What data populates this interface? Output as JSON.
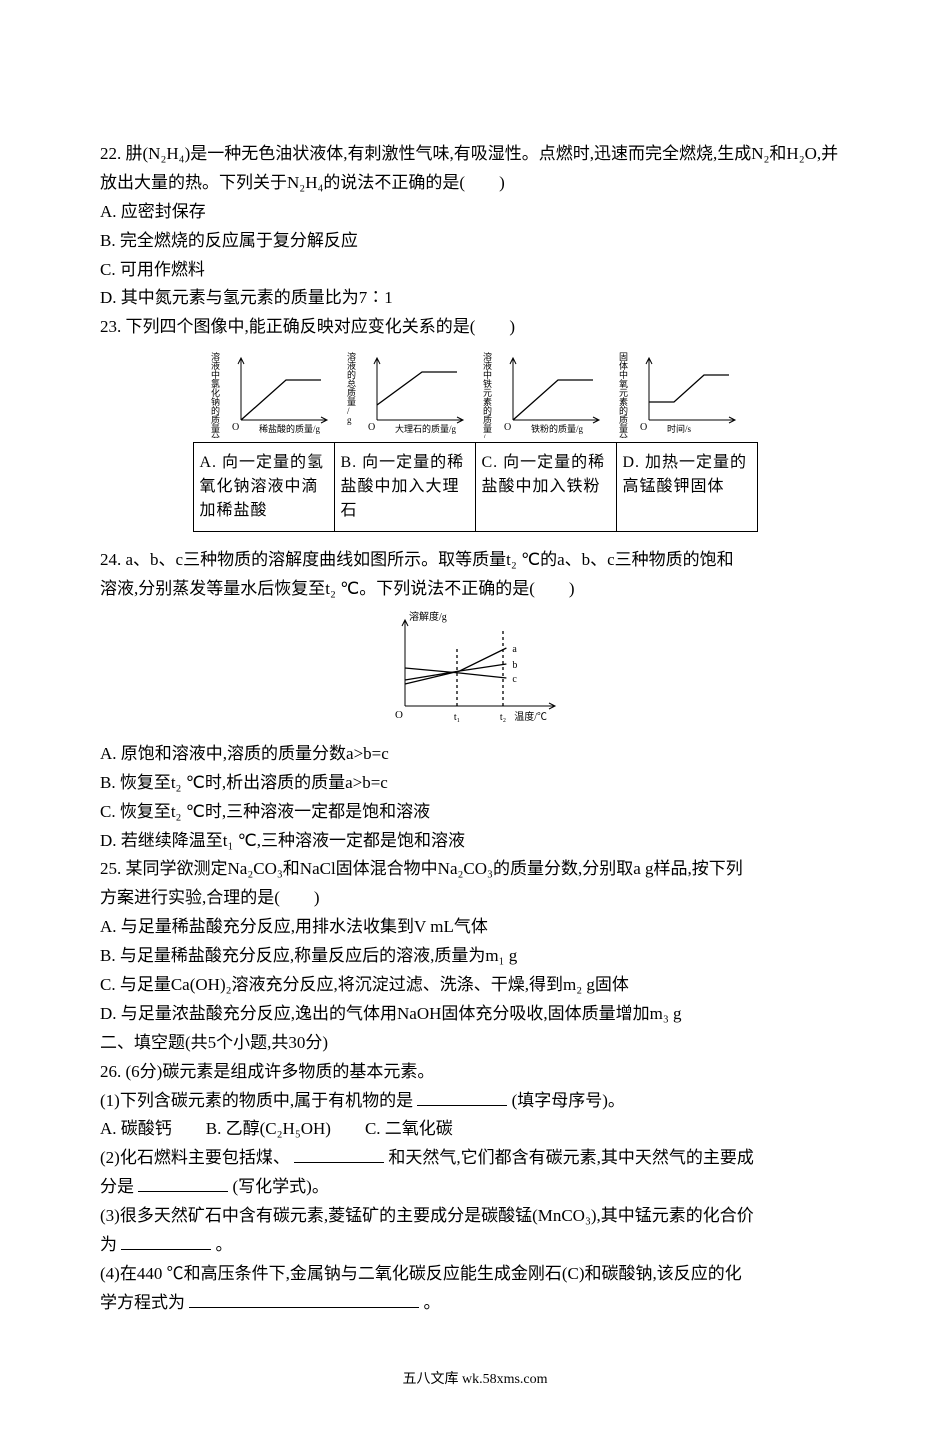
{
  "footer": "五八文库 wk.58xms.com",
  "q22": {
    "stem": "22. 肼(N₂H₄)是一种无色油状液体,有刺激性气味,有吸湿性。点燃时,迅速而完全燃烧,生成N₂和H₂O,并放出大量的热。下列关于N₂H₄的说法不正确的是(　　)",
    "A": "A. 应密封保存",
    "B": "B. 完全燃烧的反应属于复分解反应",
    "C": "C. 可用作燃料",
    "D": "D. 其中氮元素与氢元素的质量比为7∶1"
  },
  "q23": {
    "stem": "23. 下列四个图像中,能正确反映对应变化关系的是(　　)",
    "charts": [
      {
        "ylabel": "溶液中氯化钠的质量分数/%",
        "xlabel": "稀盐酸的质量/g",
        "curve": {
          "type": "rise-plateau",
          "color": "#000000"
        },
        "axis_color": "#000000",
        "font_size": 9
      },
      {
        "ylabel": "溶液的总质量/g",
        "xlabel": "大理石的质量/g",
        "curve": {
          "type": "rise-plateau-offset",
          "color": "#000000"
        },
        "axis_color": "#000000",
        "font_size": 9
      },
      {
        "ylabel": "溶液中铁元素的质量/g",
        "xlabel": "铁粉的质量/g",
        "curve": {
          "type": "rise-plateau",
          "color": "#000000"
        },
        "axis_color": "#000000",
        "font_size": 9
      },
      {
        "ylabel": "固体中氧元素的质量分数/%",
        "xlabel": "时间/s",
        "curve": {
          "type": "flat-rise-plateau",
          "color": "#000000"
        },
        "axis_color": "#000000",
        "font_size": 9
      }
    ],
    "options": {
      "A": "A. 向一定量的氢氧化钠溶液中滴加稀盐酸",
      "B": "B. 向一定量的稀盐酸中加入大理石",
      "C": "C. 向一定量的稀盐酸中加入铁粉",
      "D": "D. 加热一定量的高锰酸钾固体"
    }
  },
  "q24": {
    "stem1": "24. a、b、c三种物质的溶解度曲线如图所示。取等质量t₂ ℃的a、b、c三种物质的饱和",
    "stem2": "溶液,分别蒸发等量水后恢复至t₂ ℃。下列说法不正确的是(　　)",
    "chart": {
      "ylabel": "溶解度/g",
      "xlabel": "温度/℃",
      "xticks": [
        "t₁",
        "t₂"
      ],
      "curves": [
        {
          "name": "a",
          "color": "#000000",
          "points": [
            [
              0,
              26
            ],
            [
              42,
              35
            ],
            [
              78,
              58
            ]
          ]
        },
        {
          "name": "b",
          "color": "#000000",
          "points": [
            [
              0,
              22
            ],
            [
              42,
              35
            ],
            [
              78,
              42
            ]
          ]
        },
        {
          "name": "c",
          "color": "#000000",
          "points": [
            [
              0,
              38
            ],
            [
              42,
              33
            ],
            [
              78,
              28
            ]
          ]
        }
      ],
      "axis_color": "#000000",
      "font_size": 10
    },
    "A": "A. 原饱和溶液中,溶质的质量分数a>b=c",
    "B": "B. 恢复至t₂ ℃时,析出溶质的质量a>b=c",
    "C": "C. 恢复至t₂ ℃时,三种溶液一定都是饱和溶液",
    "D": "D. 若继续降温至t₁ ℃,三种溶液一定都是饱和溶液"
  },
  "q25": {
    "stem1": "25. 某同学欲测定Na₂CO₃和NaCl固体混合物中Na₂CO₃的质量分数,分别取a g样品,按下列",
    "stem2": "方案进行实验,合理的是(　　)",
    "A": "A. 与足量稀盐酸充分反应,用排水法收集到V mL气体",
    "B": "B. 与足量稀盐酸充分反应,称量反应后的溶液,质量为m₁ g",
    "C": "C. 与足量Ca(OH)₂溶液充分反应,将沉淀过滤、洗涤、干燥,得到m₂ g固体",
    "D": "D. 与足量浓盐酸充分反应,逸出的气体用NaOH固体充分吸收,固体质量增加m₃ g"
  },
  "section2": "二、填空题(共5个小题,共30分)",
  "q26": {
    "head": "26. (6分)碳元素是组成许多物质的基本元素。",
    "p1a": "(1)下列含碳元素的物质中,属于有机物的是",
    "p1b": "(填字母序号)。",
    "p1opts": "A. 碳酸钙　　B. 乙醇(C₂H₅OH)　　C. 二氧化碳",
    "p2a": "(2)化石燃料主要包括煤、",
    "p2b": "和天然气,它们都含有碳元素,其中天然气的主要成",
    "p2c": "分是",
    "p2d": "(写化学式)。",
    "p3a": "(3)很多天然矿石中含有碳元素,菱锰矿的主要成分是碳酸锰(MnCO₃),其中锰元素的化合价",
    "p3b": "为",
    "p3c": "。",
    "p4a": "(4)在440 ℃和高压条件下,金属钠与二氧化碳反应能生成金刚石(C)和碳酸钠,该反应的化",
    "p4b": "学方程式为",
    "p4c": "。"
  }
}
